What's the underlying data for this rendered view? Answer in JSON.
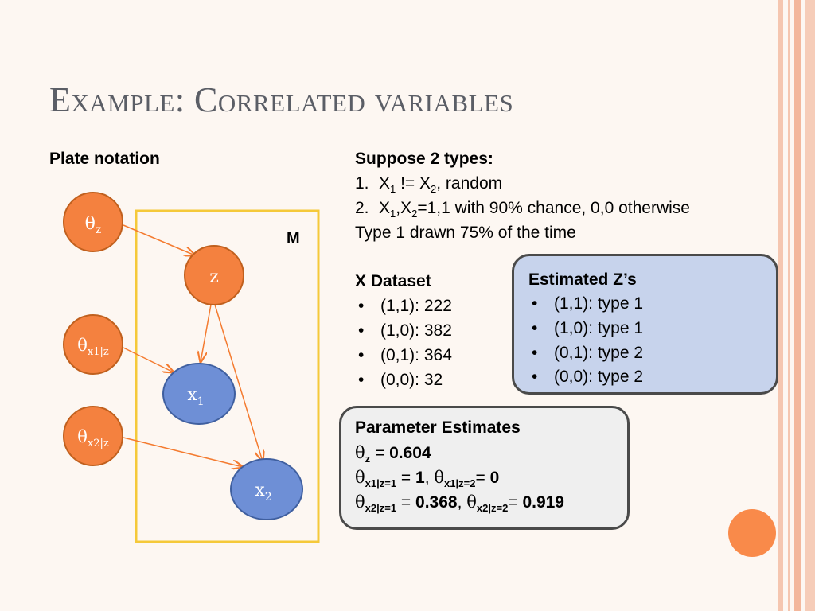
{
  "slide": {
    "title": "Example: Correlated variables",
    "left_heading": "Plate notation",
    "right_heading": "Suppose 2 types:",
    "type1": {
      "num": "1.",
      "a": "X",
      "a_sub": "1",
      "mid": " != X",
      "b_sub": "2",
      "tail": ", random"
    },
    "type2": {
      "num": "2.",
      "a": "X",
      "a_sub": "1",
      "mid": ",X",
      "b_sub": "2",
      "tail": "=1,1 with 90% chance, 0,0 otherwise"
    },
    "type_note": "Type 1 drawn 75% of the time",
    "dataset": {
      "heading": "X Dataset",
      "items": [
        "(1,1): 222",
        "(1,0): 382",
        "(0,1): 364",
        "(0,0): 32"
      ]
    },
    "estimated_z": {
      "heading": "Estimated Z’s",
      "items": [
        "(1,1): type 1",
        "(1,0): type 1",
        "(0,1): type 2",
        "(0,0): type 2"
      ]
    },
    "params": {
      "heading": "Parameter Estimates",
      "theta_symbol": "θ",
      "equals": " = ",
      "comma": ", ",
      "z_sub": "z",
      "z_val": "0.604",
      "x1_sub1": "x1|z=1",
      "x1_val1": "1",
      "x1_sub2": "x1|z=2",
      "x1_val2": "0",
      "x2_sub1": "x2|z=1",
      "x2_val1": "0.368",
      "x2_sub2": "x2|z=2",
      "x2_val2": "0.919",
      "eq_tight": "= "
    },
    "bullet": "•"
  },
  "diagram": {
    "plate_label": "M",
    "nodes": {
      "theta_z": {
        "sym": "θ",
        "sub": "z"
      },
      "z": {
        "label": "z"
      },
      "theta_x1": {
        "sym": "θ",
        "sub": "x1|z"
      },
      "x1": {
        "label": "x",
        "sub": "1"
      },
      "theta_x2": {
        "sym": "θ",
        "sub": "x2|z"
      },
      "x2": {
        "label": "x",
        "sub": "2"
      }
    },
    "colors": {
      "orange": "#f4813f",
      "blue": "#6e8fd6",
      "plate": "#f5c93a",
      "arrow": "#f47b30"
    }
  }
}
